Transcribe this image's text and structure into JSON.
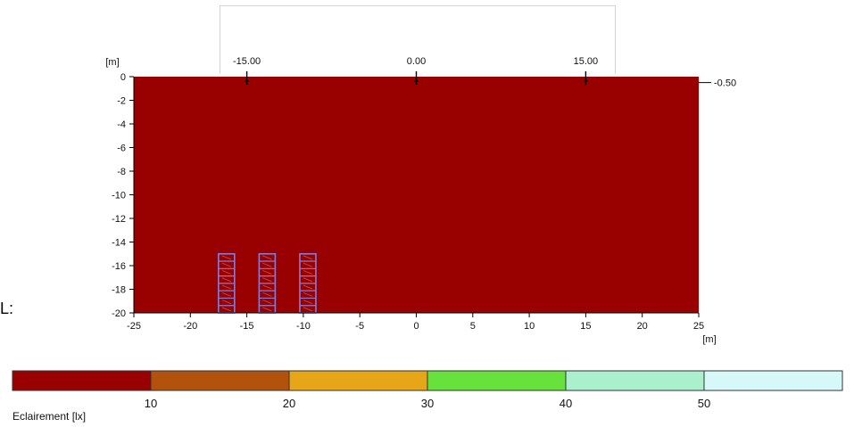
{
  "chart_data": {
    "type": "heatmap",
    "x_unit": "[m]",
    "y_unit": "[m]",
    "xlim": [
      -25,
      25
    ],
    "ylim": [
      -20,
      0
    ],
    "x_ticks": [
      -25,
      -20,
      -15,
      -10,
      -5,
      0,
      5,
      10,
      15,
      20,
      25
    ],
    "y_ticks": [
      0,
      -2,
      -4,
      -6,
      -8,
      -10,
      -12,
      -14,
      -16,
      -18,
      -20
    ],
    "top_markers": [
      "-15.00",
      "0.00",
      "15.00"
    ],
    "top_marker_x": [
      -15,
      0,
      15
    ],
    "right_marker": "-0.50",
    "right_marker_y": -0.5,
    "luminaire_groups_x": [
      -16.8,
      -13.2,
      -9.6
    ],
    "luminaire_groups_y": [
      -15,
      -20
    ],
    "contour_levels": [
      {
        "min": 0,
        "max": 10,
        "color": "#990000"
      },
      {
        "min": 10,
        "max": 20,
        "color": "#b3520c"
      },
      {
        "min": 20,
        "max": 30,
        "color": "#e6a617"
      },
      {
        "min": 30,
        "max": 40,
        "color": "#67e23c"
      },
      {
        "min": 40,
        "max": 50,
        "color": "#aaf0cc"
      },
      {
        "min": 50,
        "max": null,
        "color": "#d6f8f8"
      }
    ],
    "legend": {
      "title": "Eclairement [lx]",
      "labels": [
        "10",
        "20",
        "30",
        "40",
        "50"
      ]
    }
  },
  "side_marker": "L:"
}
